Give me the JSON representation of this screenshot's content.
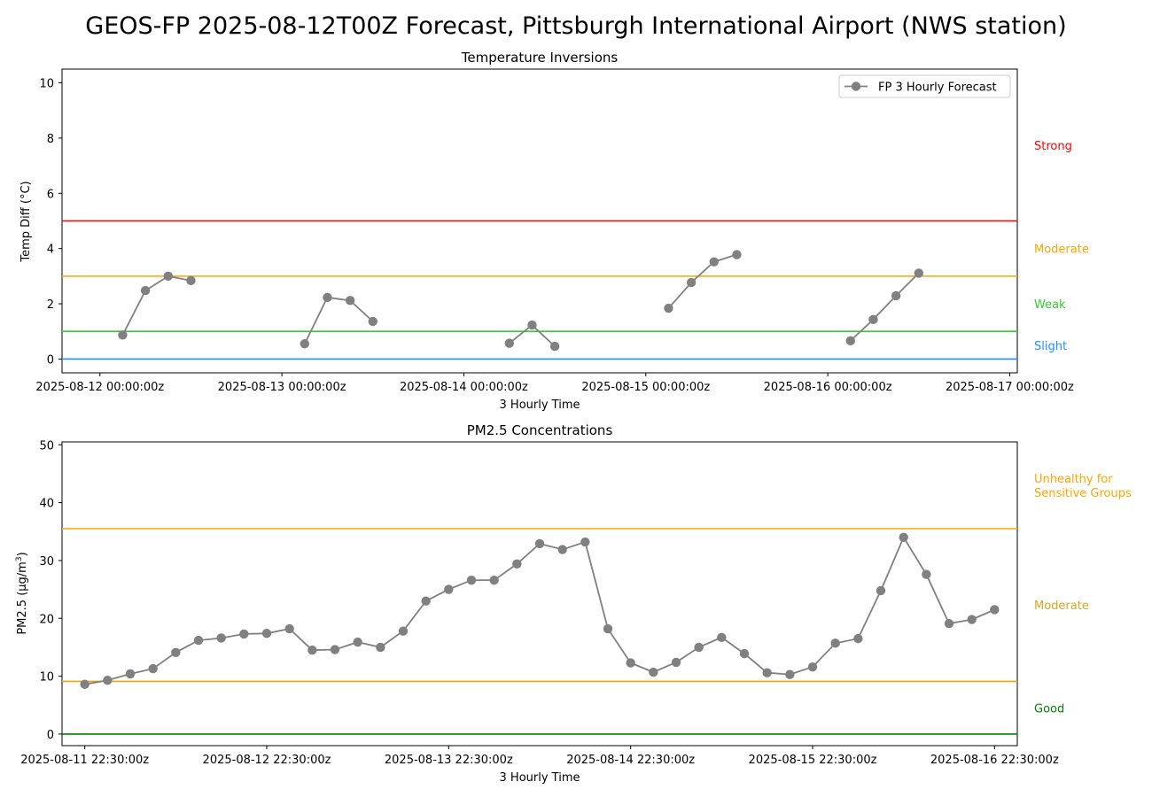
{
  "figure_title": "GEOS-FP 2025-08-12T00Z Forecast, Pittsburgh International Airport (NWS station)",
  "colors": {
    "series": "#808080",
    "strong": "#ff0000",
    "moderate": "#ffa500",
    "weak": "#32cd32",
    "slight": "#1e90ff",
    "pm_moderate": "#daa520",
    "good": "#008000"
  },
  "chart_data": [
    {
      "type": "line",
      "title": "Temperature Inversions",
      "xlabel": "3 Hourly Time",
      "ylabel": "Temp Diff (°C)",
      "ylim": [
        -0.5,
        10.5
      ],
      "yticks": [
        0,
        2,
        4,
        6,
        8,
        10
      ],
      "xlim": [
        "2025-08-11T19:00:00Z",
        "2025-08-17T01:00:00Z"
      ],
      "xticks": [
        {
          "t": "2025-08-12T00:00:00Z",
          "label": "2025-08-12 00:00:00z"
        },
        {
          "t": "2025-08-13T00:00:00Z",
          "label": "2025-08-13 00:00:00z"
        },
        {
          "t": "2025-08-14T00:00:00Z",
          "label": "2025-08-14 00:00:00z"
        },
        {
          "t": "2025-08-15T00:00:00Z",
          "label": "2025-08-15 00:00:00z"
        },
        {
          "t": "2025-08-16T00:00:00Z",
          "label": "2025-08-16 00:00:00z"
        },
        {
          "t": "2025-08-17T00:00:00Z",
          "label": "2025-08-17 00:00:00z"
        }
      ],
      "legend": {
        "position": "top-right",
        "entries": [
          "FP 3 Hourly Forecast"
        ]
      },
      "grid": false,
      "series": [
        {
          "name": "FP 3 Hourly Forecast",
          "segments": [
            [
              {
                "t": "2025-08-12T03:00:00Z",
                "y": 0.87
              },
              {
                "t": "2025-08-12T06:00:00Z",
                "y": 2.48
              },
              {
                "t": "2025-08-12T09:00:00Z",
                "y": 3.0
              },
              {
                "t": "2025-08-12T12:00:00Z",
                "y": 2.84
              }
            ],
            [
              {
                "t": "2025-08-13T03:00:00Z",
                "y": 0.55
              },
              {
                "t": "2025-08-13T06:00:00Z",
                "y": 2.23
              },
              {
                "t": "2025-08-13T09:00:00Z",
                "y": 2.12
              },
              {
                "t": "2025-08-13T12:00:00Z",
                "y": 1.36
              }
            ],
            [
              {
                "t": "2025-08-14T06:00:00Z",
                "y": 0.57
              },
              {
                "t": "2025-08-14T09:00:00Z",
                "y": 1.23
              },
              {
                "t": "2025-08-14T12:00:00Z",
                "y": 0.46
              }
            ],
            [
              {
                "t": "2025-08-15T03:00:00Z",
                "y": 1.84
              },
              {
                "t": "2025-08-15T06:00:00Z",
                "y": 2.77
              },
              {
                "t": "2025-08-15T09:00:00Z",
                "y": 3.52
              },
              {
                "t": "2025-08-15T12:00:00Z",
                "y": 3.78
              }
            ],
            [
              {
                "t": "2025-08-16T03:00:00Z",
                "y": 0.66
              },
              {
                "t": "2025-08-16T06:00:00Z",
                "y": 1.43
              },
              {
                "t": "2025-08-16T09:00:00Z",
                "y": 2.29
              },
              {
                "t": "2025-08-16T12:00:00Z",
                "y": 3.11
              }
            ]
          ]
        }
      ],
      "thresholds": [
        {
          "y": 0,
          "color": "#1e90ff",
          "label": "Slight",
          "label_y": 0.5
        },
        {
          "y": 1,
          "color": "#32cd32",
          "label": "Weak",
          "label_y": 2.0
        },
        {
          "y": 3,
          "color": "#ffa500",
          "label": "Moderate",
          "label_y": 4.0
        },
        {
          "y": 5,
          "color": "#ff0000",
          "label": "Strong",
          "label_y": 7.75
        }
      ]
    },
    {
      "type": "line",
      "title": "PM2.5 Concentrations",
      "xlabel": "3 Hourly Time",
      "ylabel": "PM2.5 (μg/m3)",
      "ylim": [
        -2,
        50.5
      ],
      "yticks": [
        0,
        10,
        20,
        30,
        40,
        50
      ],
      "xlim": [
        "2025-08-11T19:30:00Z",
        "2025-08-17T01:30:00Z"
      ],
      "xticks": [
        {
          "t": "2025-08-11T22:30:00Z",
          "label": "2025-08-11 22:30:00z"
        },
        {
          "t": "2025-08-12T22:30:00Z",
          "label": "2025-08-12 22:30:00z"
        },
        {
          "t": "2025-08-13T22:30:00Z",
          "label": "2025-08-13 22:30:00z"
        },
        {
          "t": "2025-08-14T22:30:00Z",
          "label": "2025-08-14 22:30:00z"
        },
        {
          "t": "2025-08-15T22:30:00Z",
          "label": "2025-08-15 22:30:00z"
        },
        {
          "t": "2025-08-16T22:30:00Z",
          "label": "2025-08-16 22:30:00z"
        }
      ],
      "grid": false,
      "series": [
        {
          "start": "2025-08-11T22:30:00Z",
          "step_hours": 3,
          "values": [
            8.6,
            9.3,
            10.4,
            11.3,
            14.1,
            16.2,
            16.6,
            17.3,
            17.4,
            18.2,
            14.5,
            14.6,
            15.9,
            15.0,
            17.8,
            23.0,
            25.0,
            26.6,
            26.6,
            29.4,
            32.9,
            31.9,
            33.2,
            18.2,
            12.3,
            10.7,
            12.4,
            15.0,
            16.7,
            13.9,
            10.6,
            10.3,
            11.6,
            15.7,
            16.5,
            24.8,
            34.0,
            27.6,
            19.1,
            19.8,
            21.5
          ]
        }
      ],
      "thresholds": [
        {
          "y": 0,
          "color": "#008000",
          "label": "Good",
          "label_y": 4.5
        },
        {
          "y": 9.1,
          "color": "#daa520",
          "label": "Moderate",
          "label_y": 22.3
        },
        {
          "y": 35.5,
          "color": "#ffa500",
          "label": "Unhealthy for\nSensitive Groups",
          "label_y": 43.0
        }
      ]
    }
  ]
}
